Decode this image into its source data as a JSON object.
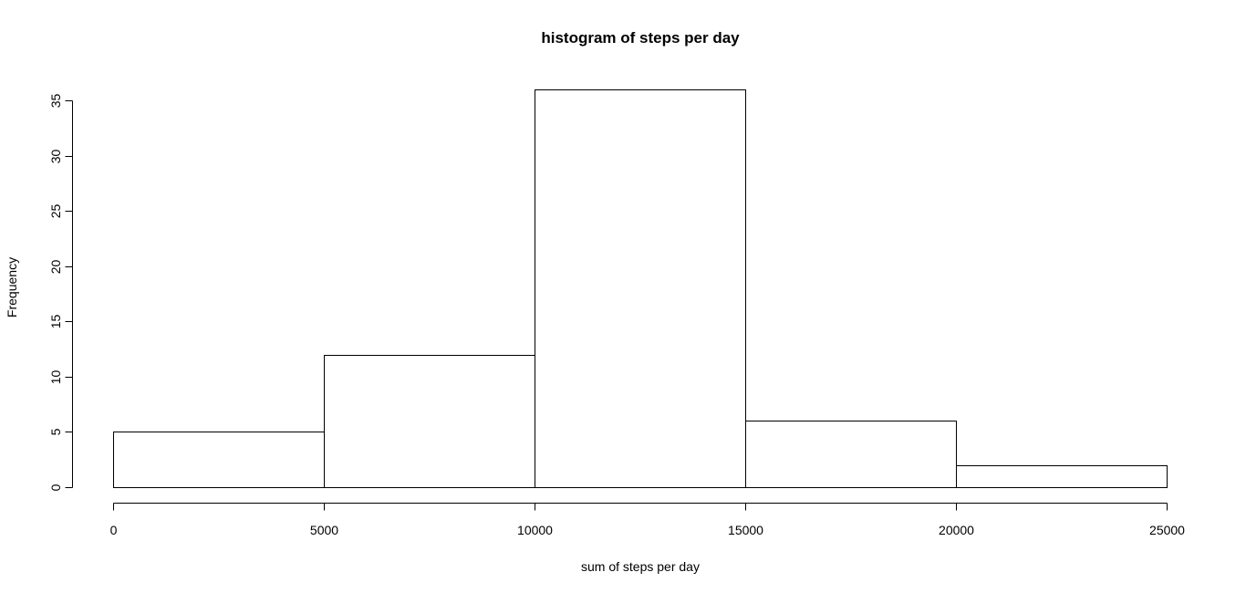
{
  "chart_data": {
    "type": "bar",
    "title": "histogram of steps per day",
    "xlabel": "sum of steps per day",
    "ylabel": "Frequency",
    "bins": [
      {
        "start": 0,
        "end": 5000,
        "count": 5
      },
      {
        "start": 5000,
        "end": 10000,
        "count": 12
      },
      {
        "start": 10000,
        "end": 15000,
        "count": 36
      },
      {
        "start": 15000,
        "end": 20000,
        "count": 6
      },
      {
        "start": 20000,
        "end": 25000,
        "count": 2
      }
    ],
    "xlim": [
      0,
      25000
    ],
    "ylim": [
      0,
      35
    ],
    "x_ticks": [
      0,
      5000,
      10000,
      15000,
      20000,
      25000
    ],
    "y_ticks": [
      0,
      5,
      10,
      15,
      20,
      25,
      30,
      35
    ],
    "grid": false,
    "legend": "none",
    "colors": {
      "bar_fill": "#ffffff",
      "bar_stroke": "#000000",
      "text": "#000000"
    }
  }
}
